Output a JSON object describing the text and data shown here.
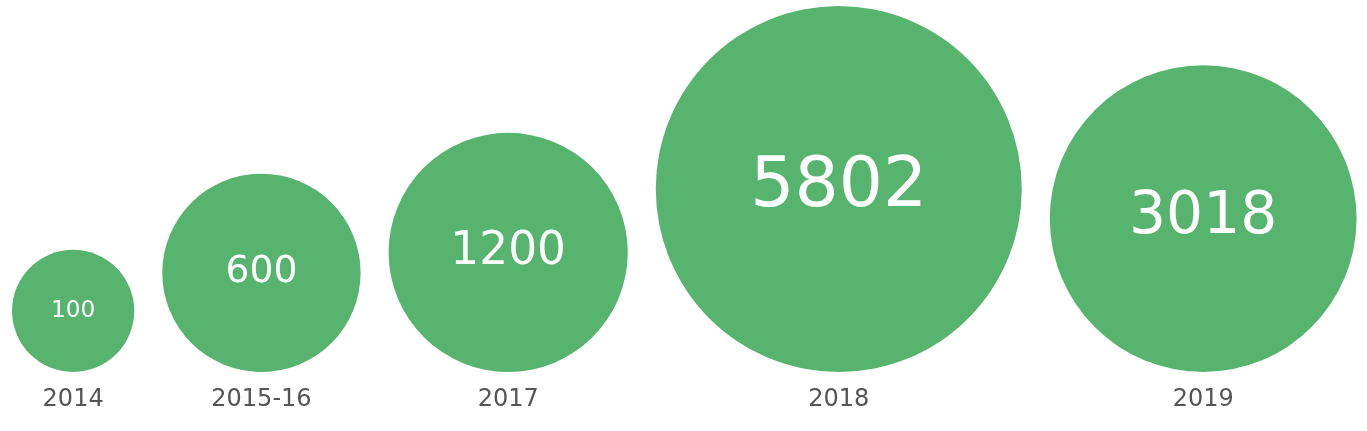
{
  "chart_data": {
    "type": "other",
    "categories": [
      "2014",
      "2015-16",
      "2017",
      "2018",
      "2019"
    ],
    "values": [
      100,
      600,
      1200,
      5802,
      3018
    ],
    "color": "#57b46e",
    "data_labels": true
  }
}
